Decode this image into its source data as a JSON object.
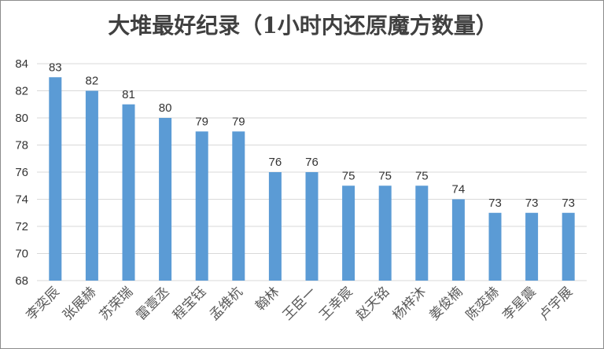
{
  "chart_data": {
    "type": "bar",
    "title": "大堆最好纪录（1小时内还原魔方数量）",
    "xlabel": "",
    "ylabel": "",
    "categories": [
      "李奕辰",
      "张展赫",
      "苏荣瑞",
      "雷壹丞",
      "程宝钰",
      "孟维杭",
      "翰林",
      "王臣一",
      "王幸宸",
      "赵天铭",
      "杨梓沐",
      "姜俊楠",
      "陈奕赫",
      "李星震",
      "卢宇展"
    ],
    "values": [
      83,
      82,
      81,
      80,
      79,
      79,
      76,
      76,
      75,
      75,
      75,
      74,
      73,
      73,
      73
    ],
    "ylim": [
      68,
      84
    ],
    "yticks": [
      68,
      70,
      72,
      74,
      76,
      78,
      80,
      82,
      84
    ],
    "grid": true,
    "bar_color": "#5b9bd5"
  }
}
